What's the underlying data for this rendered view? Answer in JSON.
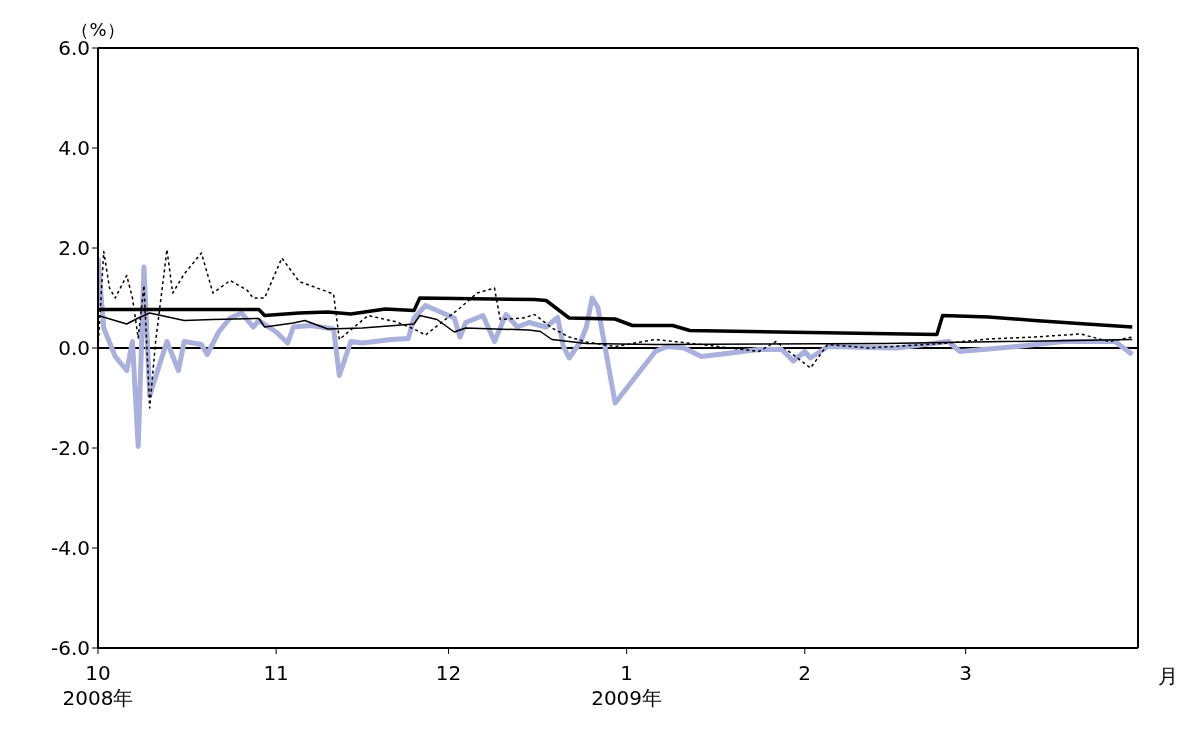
{
  "chart_data": {
    "type": "line",
    "ylabel": "（%）",
    "xlabel": "月",
    "xlim": [
      "2008-10-01",
      "2009-03-31"
    ],
    "xticks": [
      {
        "value": "2008-10-01",
        "label": "10\n2008年"
      },
      {
        "value": "2008-11-01",
        "label": "11"
      },
      {
        "value": "2008-12-01",
        "label": "12"
      },
      {
        "value": "2009-01-01",
        "label": "1\n2009年"
      },
      {
        "value": "2009-02-01",
        "label": "2"
      },
      {
        "value": "2009-03-01",
        "label": "3"
      }
    ],
    "ylim": [
      -6,
      6
    ],
    "yticks": [
      {
        "value": -6,
        "label": "-6.0"
      },
      {
        "value": -4,
        "label": "-4.0"
      },
      {
        "value": -2,
        "label": "-2.0"
      },
      {
        "value": 0,
        "label": "0.0"
      },
      {
        "value": 2,
        "label": "2.0"
      },
      {
        "value": 4,
        "label": "4.0"
      },
      {
        "value": 6,
        "label": "6.0"
      }
    ],
    "marker": "none",
    "ref_lines": [
      {
        "axis": "y",
        "value": 0,
        "color": "#000000"
      }
    ],
    "series": [
      {
        "color": "#aab0dc",
        "line_style": "solid",
        "x": [
          "2008-10-01",
          "2008-10-02",
          "2008-10-04",
          "2008-10-06",
          "2008-10-07",
          "2008-10-08",
          "2008-10-09",
          "2008-10-10",
          "2008-10-13",
          "2008-10-15",
          "2008-10-16",
          "2008-10-19",
          "2008-10-20",
          "2008-10-22",
          "2008-10-24",
          "2008-10-26",
          "2008-10-28",
          "2008-10-29",
          "2008-11-01",
          "2008-11-03",
          "2008-11-04",
          "2008-11-07",
          "2008-11-11",
          "2008-11-12",
          "2008-11-14",
          "2008-11-16",
          "2008-11-21",
          "2008-11-24",
          "2008-11-25",
          "2008-11-27",
          "2008-12-02",
          "2008-12-03",
          "2008-12-04",
          "2008-12-07",
          "2008-12-09",
          "2008-12-11",
          "2008-12-13",
          "2008-12-15",
          "2008-12-18",
          "2008-12-20",
          "2008-12-21",
          "2008-12-22",
          "2008-12-24",
          "2008-12-25",
          "2008-12-26",
          "2008-12-27",
          "2008-12-30",
          "2009-01-06",
          "2009-01-08",
          "2009-01-11",
          "2009-01-14",
          "2009-01-17",
          "2009-01-24",
          "2009-01-28",
          "2009-01-30",
          "2009-02-01",
          "2009-02-02",
          "2009-02-05",
          "2009-02-17",
          "2009-02-26",
          "2009-02-28",
          "2009-03-10",
          "2009-03-18",
          "2009-03-27",
          "2009-03-30"
        ],
        "values": [
          1.8,
          0.4,
          -0.17,
          -0.45,
          0.13,
          -1.97,
          1.62,
          -0.95,
          0.13,
          -0.45,
          0.13,
          0.07,
          -0.13,
          0.32,
          0.6,
          0.7,
          0.42,
          0.55,
          0.32,
          0.1,
          0.42,
          0.45,
          0.38,
          -0.55,
          0.13,
          0.1,
          0.17,
          0.19,
          0.6,
          0.85,
          0.6,
          0.22,
          0.51,
          0.65,
          0.13,
          0.67,
          0.42,
          0.51,
          0.42,
          0.61,
          0.03,
          -0.2,
          0.13,
          0.42,
          1.0,
          0.81,
          -1.1,
          -0.07,
          0.03,
          0.0,
          -0.17,
          -0.13,
          -0.03,
          -0.03,
          -0.26,
          -0.07,
          -0.2,
          0.03,
          0.0,
          0.13,
          -0.07,
          0.03,
          0.13,
          0.13,
          -0.13
        ]
      },
      {
        "color": "#000000",
        "line_style": "dotted",
        "x": [
          "2008-10-01",
          "2008-10-02",
          "2008-10-03",
          "2008-10-04",
          "2008-10-06",
          "2008-10-07",
          "2008-10-08",
          "2008-10-09",
          "2008-10-10",
          "2008-10-11",
          "2008-10-13",
          "2008-10-14",
          "2008-10-16",
          "2008-10-19",
          "2008-10-21",
          "2008-10-24",
          "2008-10-27",
          "2008-10-28",
          "2008-10-30",
          "2008-11-02",
          "2008-11-05",
          "2008-11-11",
          "2008-11-12",
          "2008-11-17",
          "2008-11-22",
          "2008-11-25",
          "2008-11-27",
          "2008-12-03",
          "2008-12-06",
          "2008-12-09",
          "2008-12-10",
          "2008-12-14",
          "2008-12-16",
          "2008-12-19",
          "2008-12-22",
          "2008-12-25",
          "2008-12-30",
          "2009-01-06",
          "2009-01-14",
          "2009-01-24",
          "2009-01-27",
          "2009-02-02",
          "2009-02-05",
          "2009-02-12",
          "2009-02-25",
          "2009-03-05",
          "2009-03-13",
          "2009-03-21",
          "2009-03-26",
          "2009-03-30"
        ],
        "values": [
          0.0,
          1.93,
          1.2,
          1.0,
          1.45,
          1.0,
          0.2,
          1.25,
          -1.2,
          0.1,
          1.97,
          1.1,
          1.48,
          1.9,
          1.1,
          1.35,
          1.15,
          1.0,
          1.0,
          1.8,
          1.33,
          1.08,
          0.17,
          0.65,
          0.52,
          0.38,
          0.26,
          0.8,
          1.1,
          1.2,
          0.57,
          0.6,
          0.67,
          0.4,
          0.22,
          0.12,
          0.03,
          0.17,
          0.07,
          -0.07,
          0.13,
          -0.4,
          0.07,
          0.0,
          0.09,
          0.18,
          0.22,
          0.28,
          0.13,
          0.22
        ]
      },
      {
        "color": "#000000",
        "line_style": "solid",
        "x": [
          "2008-10-01",
          "2008-10-06",
          "2008-10-08",
          "2008-10-10",
          "2008-10-12",
          "2008-10-16",
          "2008-10-21",
          "2008-10-29",
          "2008-10-30",
          "2008-11-04",
          "2008-11-06",
          "2008-11-10",
          "2008-11-16",
          "2008-11-25",
          "2008-11-26",
          "2008-11-29",
          "2008-12-02",
          "2008-12-04",
          "2008-12-15",
          "2008-12-17",
          "2008-12-19",
          "2008-12-25",
          "2009-01-06",
          "2009-02-15",
          "2009-03-30"
        ],
        "values": [
          0.65,
          0.48,
          0.6,
          0.7,
          0.65,
          0.55,
          0.57,
          0.59,
          0.42,
          0.5,
          0.55,
          0.38,
          0.4,
          0.48,
          0.65,
          0.57,
          0.32,
          0.4,
          0.36,
          0.33,
          0.17,
          0.09,
          0.07,
          0.09,
          0.17
        ]
      },
      {
        "color": "#000000",
        "line_style": "solid",
        "x": [
          "2008-10-01",
          "2008-10-29",
          "2008-10-30",
          "2008-11-05",
          "2008-11-10",
          "2008-11-14",
          "2008-11-20",
          "2008-11-25",
          "2008-11-26",
          "2008-12-16",
          "2008-12-18",
          "2008-12-22",
          "2008-12-30",
          "2009-01-02",
          "2009-01-09",
          "2009-01-12",
          "2009-02-24",
          "2009-02-25",
          "2009-03-05",
          "2009-03-13",
          "2009-03-22",
          "2009-03-30"
        ],
        "values": [
          0.77,
          0.77,
          0.65,
          0.7,
          0.72,
          0.68,
          0.78,
          0.75,
          1.0,
          0.97,
          0.95,
          0.6,
          0.58,
          0.45,
          0.45,
          0.35,
          0.27,
          0.65,
          0.62,
          0.55,
          0.48,
          0.42
        ]
      }
    ]
  }
}
